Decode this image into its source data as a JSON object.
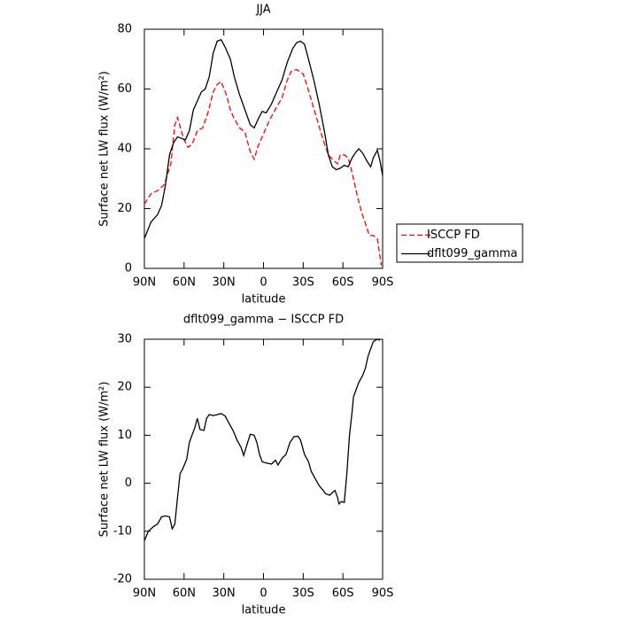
{
  "chart_data": [
    {
      "type": "line",
      "title": "JJA",
      "xlabel": "latitude",
      "ylabel": "Surface net LW flux (W/m²)",
      "xlim": [
        90,
        -90
      ],
      "xticks": [
        {
          "value": 90,
          "label": "90N"
        },
        {
          "value": 60,
          "label": "60N"
        },
        {
          "value": 30,
          "label": "30N"
        },
        0,
        {
          "value": -30,
          "label": "30S"
        },
        {
          "value": -60,
          "label": "60S"
        },
        {
          "value": -90,
          "label": "90S"
        }
      ],
      "ylim": [
        0,
        80
      ],
      "yticks": [
        0,
        20,
        40,
        60,
        80
      ],
      "legend": "right",
      "series": [
        {
          "name": "ISCCP FD",
          "color": "#ff0000",
          "line_style": "dashed",
          "x": [
            90,
            85,
            80,
            75,
            70,
            67,
            65,
            62,
            60,
            57,
            54,
            50,
            46,
            42,
            38,
            35,
            32,
            28,
            25,
            22,
            18,
            14,
            10,
            7,
            4,
            0,
            -5,
            -10,
            -14,
            -18,
            -21,
            -25,
            -30,
            -33,
            -37,
            -41,
            -45,
            -49,
            -53,
            -56,
            -58,
            -61,
            -64,
            -67,
            -71,
            -74,
            -77,
            -80,
            -83,
            -86,
            -89
          ],
          "values": [
            21.5,
            25,
            26,
            28,
            35,
            48,
            50.5,
            46,
            43,
            40.5,
            41.5,
            46,
            47,
            52,
            59,
            61.5,
            62.5,
            58,
            53,
            50,
            47,
            45.5,
            39,
            36.5,
            41,
            45,
            50,
            54,
            57,
            63,
            66,
            66.5,
            65,
            61,
            55,
            49,
            43,
            38,
            36,
            35,
            38,
            38,
            37,
            32,
            24,
            19,
            15,
            11,
            11,
            10,
            1
          ]
        },
        {
          "name": "dflt099_gamma",
          "color": "#000000",
          "line_style": "solid",
          "x": [
            90,
            85,
            80,
            77,
            74,
            71,
            68,
            65,
            62,
            59,
            56,
            53,
            50,
            47,
            44,
            41,
            38,
            35,
            32,
            29,
            25,
            22,
            18,
            14,
            10,
            7,
            4,
            1,
            -2,
            -6,
            -10,
            -14,
            -18,
            -22,
            -25,
            -28,
            -31,
            -34,
            -38,
            -42,
            -46,
            -49,
            -52,
            -55,
            -58,
            -61,
            -64,
            -67,
            -70,
            -72,
            -75,
            -78,
            -81,
            -83,
            -86,
            -88,
            -90
          ],
          "values": [
            10,
            15.5,
            18,
            21,
            28,
            38,
            42,
            44,
            43.5,
            43,
            46,
            53,
            56,
            59,
            60,
            64,
            72,
            76,
            76.5,
            74,
            70,
            64,
            58,
            53,
            48,
            47,
            50,
            52.5,
            52,
            55,
            59,
            63,
            69,
            73.5,
            75.5,
            76,
            75,
            70,
            63,
            55,
            46,
            38,
            34,
            33,
            33.5,
            34.5,
            34,
            37,
            39,
            40,
            38.5,
            36,
            34,
            37,
            39.5,
            36,
            31
          ]
        }
      ]
    },
    {
      "type": "line",
      "title": "dflt099_gamma − ISCCP FD",
      "xlabel": "latitude",
      "ylabel": "Surface net LW flux (W/m²)",
      "xlim": [
        90,
        -90
      ],
      "xticks": [
        {
          "value": 90,
          "label": "90N"
        },
        {
          "value": 60,
          "label": "60N"
        },
        {
          "value": 30,
          "label": "30N"
        },
        0,
        {
          "value": -30,
          "label": "30S"
        },
        {
          "value": -60,
          "label": "60S"
        },
        {
          "value": -90,
          "label": "90S"
        }
      ],
      "ylim": [
        -20,
        30
      ],
      "yticks": [
        -20,
        -10,
        0,
        10,
        20,
        30
      ],
      "series": [
        {
          "color": "#000000",
          "line_style": "solid",
          "x": [
            90,
            87,
            83,
            80,
            77,
            74,
            71,
            69,
            67,
            65,
            63,
            61,
            58,
            56,
            54,
            52,
            50,
            48,
            45,
            43,
            41,
            38,
            35,
            32,
            29,
            26,
            23,
            20,
            17,
            15,
            12,
            10,
            7,
            5,
            3,
            1,
            -2,
            -6,
            -9,
            -11,
            -14,
            -17,
            -20,
            -23,
            -26,
            -28,
            -31,
            -34,
            -36,
            -39,
            -42,
            -45,
            -47,
            -50,
            -52,
            -54,
            -56,
            -57,
            -59,
            -61,
            -63,
            -65,
            -67,
            -68,
            -70,
            -72,
            -75,
            -77,
            -79,
            -81,
            -83,
            -86,
            -88
          ],
          "values": [
            -12,
            -10,
            -9,
            -8.5,
            -7,
            -6.8,
            -7,
            -9.5,
            -8.5,
            -3,
            2,
            3,
            5,
            8.5,
            10,
            11.5,
            13.5,
            11.2,
            11,
            13.5,
            14.3,
            14.1,
            14.3,
            14.5,
            14,
            12.5,
            11,
            9,
            7.5,
            5.8,
            8.5,
            10.2,
            10,
            8.5,
            6,
            4.5,
            4.2,
            4,
            4.8,
            3.8,
            5.2,
            6,
            8.5,
            9.7,
            9.8,
            9,
            6,
            4.5,
            2.5,
            1,
            -0.5,
            -1.5,
            -2.2,
            -2.5,
            -2,
            -1.5,
            -3,
            -4.3,
            -3.8,
            -4,
            2,
            10,
            15,
            18,
            19.5,
            21,
            22.5,
            24,
            26.5,
            28,
            29.5,
            30,
            29.8
          ]
        }
      ]
    }
  ]
}
